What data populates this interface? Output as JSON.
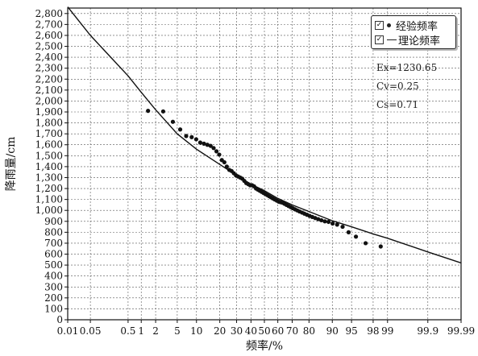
{
  "chart_data": {
    "type": "scatter",
    "xlabel": "频率/%",
    "ylabel": "降雨量/cm",
    "x_scale": "probability",
    "x_ticks": [
      0.01,
      0.05,
      0.5,
      1,
      2,
      5,
      10,
      20,
      30,
      40,
      50,
      60,
      70,
      80,
      90,
      95,
      98,
      99,
      99.9,
      99.99
    ],
    "x_tick_labels": [
      "0.01",
      "0.05",
      "0.5",
      "1",
      "2",
      "5",
      "10",
      "20",
      "30",
      "40",
      "50",
      "60",
      "70",
      "80",
      "90",
      "95",
      "98",
      "99",
      "99.9",
      "99.99"
    ],
    "y_ticks": [
      0,
      100,
      200,
      300,
      400,
      500,
      600,
      700,
      800,
      900,
      1000,
      1100,
      1200,
      1300,
      1400,
      1500,
      1600,
      1700,
      1800,
      1900,
      2000,
      2100,
      2200,
      2300,
      2400,
      2500,
      2600,
      2700,
      2800
    ],
    "y_tick_labels": [
      "0",
      "100",
      "200",
      "300",
      "400",
      "500",
      "600",
      "700",
      "800",
      "900",
      "1,000",
      "1,100",
      "1,200",
      "1,300",
      "1,400",
      "1,500",
      "1,600",
      "1,700",
      "1,800",
      "1,900",
      "2,000",
      "2,100",
      "2,200",
      "2,300",
      "2,400",
      "2,500",
      "2,600",
      "2,700",
      "2,800"
    ],
    "ylim": [
      0,
      2850
    ],
    "grid": true,
    "legend": {
      "position": "top-right",
      "entries": [
        "经验频率",
        "理论频率"
      ]
    },
    "series": [
      {
        "name": "经验频率",
        "kind": "points",
        "x": [
          1.4,
          2.8,
          4.2,
          5.6,
          7.0,
          8.5,
          9.9,
          11.3,
          12.7,
          14.1,
          15.5,
          16.9,
          18.3,
          19.7,
          21.1,
          22.5,
          23.9,
          25.4,
          26.8,
          28.2,
          29.6,
          31.0,
          32.4,
          33.8,
          35.2,
          36.6,
          38.0,
          39.4,
          40.8,
          42.3,
          43.7,
          45.1,
          46.5,
          47.9,
          49.3,
          50.7,
          52.1,
          53.5,
          54.9,
          56.3,
          57.7,
          59.2,
          60.6,
          62.0,
          63.4,
          64.8,
          66.2,
          67.6,
          69.0,
          70.4,
          71.8,
          73.2,
          74.6,
          76.1,
          77.5,
          78.9,
          80.3,
          81.7,
          83.1,
          84.5,
          85.9,
          87.3,
          88.7,
          90.1,
          91.5,
          93.0,
          94.4,
          95.8,
          97.2,
          98.6
        ],
        "y": [
          1910,
          1905,
          1810,
          1740,
          1680,
          1670,
          1650,
          1620,
          1610,
          1600,
          1590,
          1570,
          1540,
          1510,
          1460,
          1440,
          1400,
          1370,
          1360,
          1340,
          1320,
          1310,
          1300,
          1290,
          1270,
          1250,
          1240,
          1230,
          1230,
          1220,
          1200,
          1190,
          1180,
          1170,
          1160,
          1150,
          1140,
          1130,
          1120,
          1110,
          1100,
          1090,
          1080,
          1075,
          1070,
          1060,
          1050,
          1040,
          1030,
          1020,
          1010,
          1000,
          990,
          980,
          970,
          960,
          950,
          940,
          930,
          920,
          910,
          900,
          895,
          880,
          870,
          850,
          800,
          760,
          700,
          670
        ]
      },
      {
        "name": "理论频率",
        "kind": "curve",
        "x": [
          0.01,
          0.05,
          0.5,
          1,
          2,
          5,
          10,
          20,
          30,
          40,
          50,
          60,
          70,
          80,
          90,
          95,
          98,
          99,
          99.9,
          99.99
        ],
        "y": [
          2860,
          2600,
          2230,
          2080,
          1920,
          1700,
          1560,
          1420,
          1320,
          1240,
          1180,
          1110,
          1050,
          990,
          905,
          850,
          785,
          745,
          620,
          520
        ]
      }
    ],
    "annotations": [
      "Ex=1230.65",
      "Cv=0.25",
      "Cs=0.71"
    ]
  }
}
